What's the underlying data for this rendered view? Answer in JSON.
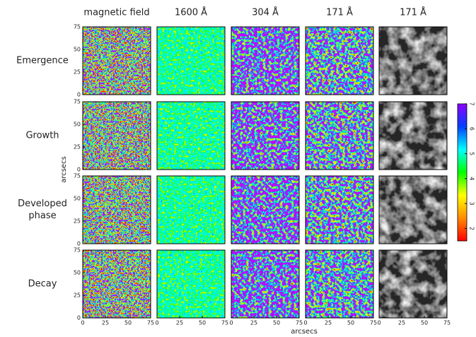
{
  "chart_data": {
    "type": "image-grid",
    "columns": [
      "magnetic field",
      "1600 Å",
      "304 Å",
      "171 Å",
      "171 Å"
    ],
    "rows": [
      "Emergence",
      "Growth",
      "Developed phase",
      "Decay"
    ],
    "xlabel": "arcsecs",
    "ylabel": "arcsecs",
    "xlim": [
      0,
      75
    ],
    "ylim": [
      0,
      75
    ],
    "xticks": [
      0,
      25,
      50,
      75
    ],
    "yticks": [
      0,
      25,
      50,
      75
    ],
    "colorbar": {
      "lim": [
        1.5,
        7
      ],
      "ticks": [
        2,
        3,
        4,
        5,
        6,
        7
      ]
    }
  }
}
